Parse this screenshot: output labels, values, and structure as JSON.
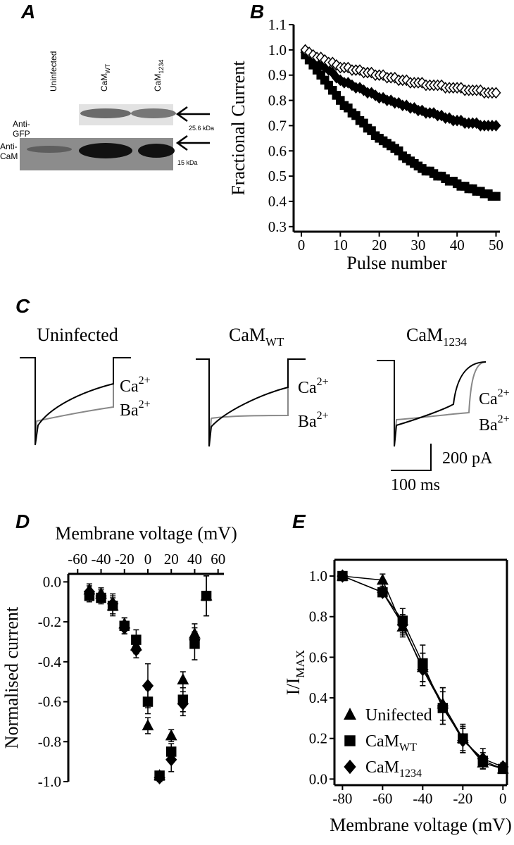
{
  "panel_a": {
    "label": "A",
    "lanes": [
      {
        "name": "Uninfected"
      },
      {
        "name": "CaM",
        "sub": "WT"
      },
      {
        "name": "CaM",
        "sub": "1234"
      }
    ],
    "rows": [
      {
        "label": [
          "Anti-",
          "GFP"
        ],
        "size": "25.6 kDa"
      },
      {
        "label": [
          "Anti-",
          "CaM"
        ],
        "size": "15 kDa"
      }
    ]
  },
  "panel_c": {
    "label": "C",
    "traces": [
      {
        "title": "Uninfected"
      },
      {
        "title": "CaM",
        "sub": "WT"
      },
      {
        "title": "CaM",
        "sub": "1234"
      }
    ],
    "ions": [
      {
        "name": "Ca",
        "charge": "2+"
      },
      {
        "name": "Ba",
        "charge": "2+"
      }
    ],
    "scale_y": "200 pA",
    "scale_x": "100 ms"
  },
  "chart_data": [
    {
      "type": "scatter",
      "panel": "B",
      "xlabel": "Pulse number",
      "ylabel": "Fractional Current",
      "frame": "left-bottom",
      "xlim": [
        -2,
        51
      ],
      "xticks": [
        0,
        10,
        20,
        30,
        40,
        50
      ],
      "ylim": [
        0.28,
        1.1
      ],
      "yticks": [
        0.3,
        0.4,
        0.5,
        0.6,
        0.7,
        0.8,
        0.9,
        {
          "value": 1.0,
          "label": "1.0"
        },
        1.1
      ],
      "x": [
        1,
        2,
        3,
        4,
        5,
        6,
        7,
        8,
        9,
        10,
        11,
        12,
        13,
        14,
        15,
        16,
        17,
        18,
        19,
        20,
        21,
        22,
        23,
        24,
        25,
        26,
        27,
        28,
        29,
        30,
        31,
        32,
        33,
        34,
        35,
        36,
        37,
        38,
        39,
        40,
        41,
        42,
        43,
        44,
        45,
        46,
        47,
        48,
        49,
        50
      ],
      "series": [
        {
          "marker": "square",
          "filled": true,
          "color": "#000000",
          "values": [
            0.98,
            0.96,
            0.94,
            0.92,
            0.9,
            0.88,
            0.86,
            0.84,
            0.82,
            0.8,
            0.78,
            0.77,
            0.75,
            0.74,
            0.72,
            0.71,
            0.69,
            0.68,
            0.66,
            0.65,
            0.64,
            0.63,
            0.62,
            0.61,
            0.6,
            0.58,
            0.57,
            0.56,
            0.55,
            0.54,
            0.53,
            0.52,
            0.52,
            0.51,
            0.5,
            0.5,
            0.49,
            0.48,
            0.48,
            0.47,
            0.46,
            0.46,
            0.45,
            0.45,
            0.44,
            0.44,
            0.43,
            0.43,
            0.42,
            0.42
          ]
        },
        {
          "marker": "diamond",
          "filled": true,
          "color": "#000000",
          "values": [
            0.99,
            0.98,
            0.96,
            0.95,
            0.94,
            0.93,
            0.92,
            0.91,
            0.89,
            0.88,
            0.87,
            0.87,
            0.86,
            0.85,
            0.85,
            0.84,
            0.83,
            0.83,
            0.82,
            0.81,
            0.81,
            0.8,
            0.8,
            0.79,
            0.79,
            0.78,
            0.78,
            0.77,
            0.77,
            0.76,
            0.76,
            0.75,
            0.75,
            0.75,
            0.74,
            0.74,
            0.73,
            0.73,
            0.72,
            0.72,
            0.72,
            0.71,
            0.71,
            0.71,
            0.71,
            0.7,
            0.7,
            0.7,
            0.7,
            0.7
          ]
        },
        {
          "marker": "diamond",
          "filled": false,
          "color": "#000000",
          "values": [
            1.0,
            0.99,
            0.98,
            0.97,
            0.97,
            0.96,
            0.95,
            0.95,
            0.94,
            0.93,
            0.93,
            0.93,
            0.92,
            0.92,
            0.92,
            0.91,
            0.91,
            0.91,
            0.9,
            0.9,
            0.9,
            0.89,
            0.89,
            0.89,
            0.88,
            0.88,
            0.88,
            0.87,
            0.87,
            0.87,
            0.87,
            0.86,
            0.86,
            0.86,
            0.86,
            0.86,
            0.85,
            0.85,
            0.85,
            0.85,
            0.85,
            0.84,
            0.84,
            0.84,
            0.84,
            0.84,
            0.83,
            0.83,
            0.83,
            0.83
          ]
        }
      ]
    },
    {
      "type": "scatter",
      "panel": "D",
      "xlabel": "Membrane voltage (mV)",
      "ylabel": "Normalised current",
      "frame": "left-top",
      "xaxis_position": "top",
      "xlim": [
        -68,
        65
      ],
      "xticks": [
        -60,
        -40,
        -20,
        0,
        20,
        40,
        60
      ],
      "ylim": [
        -1,
        0.04
      ],
      "yticks": [
        {
          "value": 0,
          "label": "0.0"
        },
        -0.2,
        -0.4,
        -0.6,
        -0.8,
        {
          "value": -1,
          "label": "-1.0"
        }
      ],
      "x": [
        -50,
        -40,
        -30,
        -20,
        -10,
        0,
        10,
        20,
        30,
        40,
        50
      ],
      "series": [
        {
          "marker": "triangle",
          "filled": true,
          "color": "#000000",
          "values": [
            -0.04,
            -0.06,
            -0.12,
            -0.21,
            -0.32,
            -0.72,
            -0.97,
            -0.77,
            -0.49,
            -0.26,
            -0.07
          ],
          "errors": [
            0.03,
            0.03,
            0.04,
            0.03,
            0.04,
            0.04,
            0.02,
            0.03,
            0.04,
            0.05,
            0.1
          ]
        },
        {
          "marker": "square",
          "filled": true,
          "color": "#000000",
          "values": [
            -0.07,
            -0.08,
            -0.12,
            -0.22,
            -0.29,
            -0.6,
            -0.97,
            -0.85,
            -0.59,
            -0.31,
            -0.07
          ],
          "errors": [
            0.03,
            0.03,
            0.05,
            0.04,
            0.05,
            0.06,
            0.02,
            0.04,
            0.06,
            0.08,
            0.1
          ]
        },
        {
          "marker": "diamond",
          "filled": true,
          "color": "#000000",
          "values": [
            -0.05,
            -0.07,
            -0.11,
            -0.23,
            -0.34,
            -0.52,
            -0.98,
            -0.89,
            -0.61,
            -0.29,
            null
          ],
          "errors": [
            0.03,
            0.03,
            0.05,
            0.03,
            0.04,
            0.11,
            0.02,
            0.06,
            0.06,
            0.04,
            null
          ]
        }
      ]
    },
    {
      "type": "scatter",
      "panel": "E",
      "xlabel": "Membrane voltage (mV)",
      "ylabel": "I/I",
      "ylabel_sub": "MAX",
      "frame": "box",
      "line": true,
      "legend": "lower-left",
      "xlim": [
        -84,
        2
      ],
      "xticks": [
        -80,
        -60,
        -40,
        -20,
        0
      ],
      "ylim": [
        -0.03,
        1.08
      ],
      "yticks": [
        {
          "value": 0,
          "label": "0.0"
        },
        0.2,
        0.4,
        0.6,
        0.8,
        {
          "value": 1,
          "label": "1.0"
        }
      ],
      "x": [
        -80,
        -60,
        -50,
        -40,
        -30,
        -20,
        -10,
        0
      ],
      "series": [
        {
          "name": "Unifected",
          "marker": "triangle",
          "filled": true,
          "color": "#000000",
          "values": [
            1.0,
            0.98,
            0.75,
            0.55,
            0.37,
            0.2,
            0.08,
            0.05
          ],
          "errors": [
            0.01,
            0.03,
            0.05,
            0.07,
            0.08,
            0.06,
            0.03,
            0.02
          ]
        },
        {
          "name": "CaM",
          "name_sub": "WT",
          "marker": "square",
          "filled": true,
          "color": "#000000",
          "values": [
            1.0,
            0.92,
            0.78,
            0.57,
            0.35,
            0.2,
            0.09,
            0.05
          ],
          "errors": [
            0.01,
            0.02,
            0.06,
            0.09,
            0.08,
            0.07,
            0.04,
            0.02
          ]
        },
        {
          "name": "CaM",
          "name_sub": "1234",
          "marker": "diamond",
          "filled": true,
          "color": "#000000",
          "values": [
            1.0,
            0.92,
            0.76,
            0.54,
            0.36,
            0.19,
            0.1,
            0.06
          ],
          "errors": [
            0.01,
            0.02,
            0.05,
            0.08,
            0.09,
            0.06,
            0.05,
            0.02
          ]
        }
      ]
    }
  ]
}
